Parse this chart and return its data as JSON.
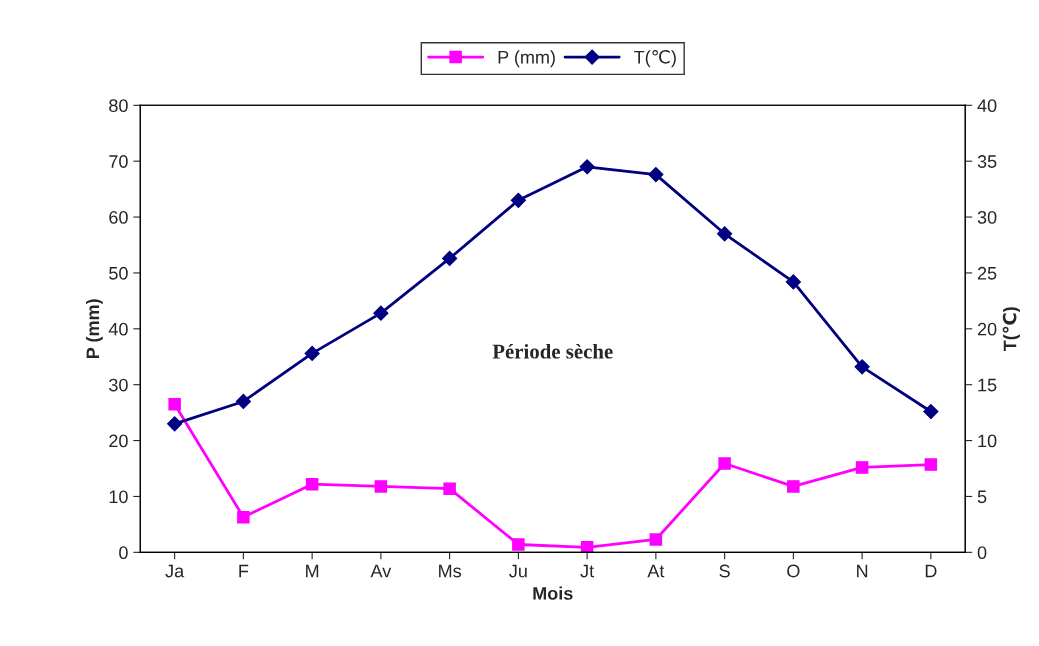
{
  "chart_data": {
    "type": "line",
    "xlabel": "Mois",
    "ylabel": "P (mm)",
    "y2label": "T(℃)",
    "categories": [
      "Ja",
      "F",
      "M",
      "Av",
      "Ms",
      "Ju",
      "Jt",
      "At",
      "S",
      "O",
      "N",
      "D"
    ],
    "series": [
      {
        "name": "P (mm)",
        "color": "#ff00ff",
        "marker": "square",
        "values": [
          26.5,
          6.3,
          12.2,
          11.8,
          11.4,
          1.4,
          0.9,
          2.3,
          15.9,
          11.8,
          15.2,
          15.7
        ]
      },
      {
        "name": "T(℃)",
        "color": "#000080",
        "marker": "diamond",
        "axis": "y2",
        "values": [
          11.5,
          13.5,
          17.8,
          21.4,
          26.3,
          31.5,
          34.5,
          33.8,
          28.5,
          24.2,
          16.6,
          12.6
        ]
      }
    ],
    "ylim": [
      0,
      80
    ],
    "yticks": [
      0,
      10,
      20,
      30,
      40,
      50,
      60,
      70,
      80
    ],
    "y2lim": [
      0,
      40
    ],
    "y2ticks": [
      0,
      5,
      10,
      15,
      20,
      25,
      30,
      35,
      40
    ],
    "annotations": [
      "Période sèche"
    ],
    "legend": "top",
    "grid": false,
    "line_style": "solid"
  }
}
